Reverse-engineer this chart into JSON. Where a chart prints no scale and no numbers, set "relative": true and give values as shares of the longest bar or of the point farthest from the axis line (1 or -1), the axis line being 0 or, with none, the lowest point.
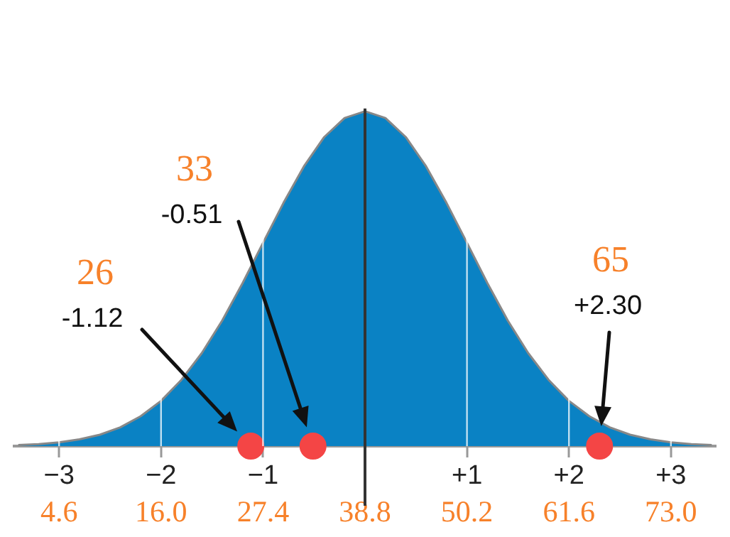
{
  "chart_data": {
    "type": "area",
    "relative": true,
    "xlim": [
      -3.44,
      3.44
    ],
    "xticks": [
      {
        "value": -3,
        "label": "−3"
      },
      {
        "value": -2,
        "label": "−2"
      },
      {
        "value": -1,
        "label": "−1"
      },
      {
        "value": 0,
        "label": null
      },
      {
        "value": 1,
        "label": "+1"
      },
      {
        "value": 2,
        "label": "+2"
      },
      {
        "value": 3,
        "label": "+3"
      }
    ],
    "x2lim": [
      -0.416,
      78.016
    ],
    "x2ticks": [
      4.6,
      {
        "value": 16,
        "label": "16.0"
      },
      27.4,
      38.8,
      50.2,
      61.6,
      {
        "value": 73,
        "label": "73.0"
      }
    ],
    "grid": "x",
    "ref_lines": [
      {
        "axis": "x",
        "value": 0,
        "color": "#333333"
      }
    ],
    "series": [
      {
        "color": "#0a82c4",
        "x": [
          -3.4,
          -3.2,
          -3,
          -2.8,
          -2.6,
          -2.4,
          -2.2,
          -2,
          -1.8,
          -1.6,
          -1.4,
          -1.2,
          -1,
          -0.8,
          -0.6,
          -0.4,
          -0.2,
          0,
          0.2,
          0.4,
          0.6,
          0.8,
          1,
          1.2,
          1.4,
          1.6,
          1.8,
          2,
          2.2,
          2.4,
          2.6,
          2.8,
          3,
          3.2,
          3.4
        ],
        "values": [
          0.003,
          0.006,
          0.011,
          0.02,
          0.034,
          0.056,
          0.089,
          0.135,
          0.198,
          0.278,
          0.375,
          0.487,
          0.607,
          0.726,
          0.835,
          0.923,
          0.98,
          1,
          0.98,
          0.923,
          0.835,
          0.726,
          0.607,
          0.487,
          0.375,
          0.278,
          0.198,
          0.135,
          0.089,
          0.056,
          0.034,
          0.02,
          0.011,
          0.006,
          0.003
        ]
      },
      {
        "type": "scatter",
        "color": "#f44545",
        "marker": "circle",
        "x": [
          -1.12,
          -0.51,
          2.3
        ],
        "values": [
          0,
          0,
          0
        ]
      }
    ],
    "annotations": [
      "26",
      "-1.12",
      "33",
      "-0.51",
      "65",
      "+2.30"
    ]
  }
}
